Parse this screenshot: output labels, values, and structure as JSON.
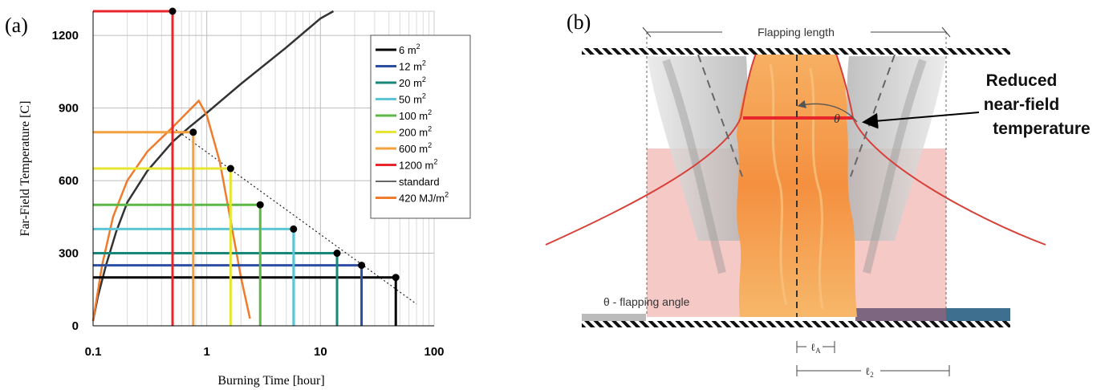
{
  "panel_a": {
    "label": "(a)",
    "chart_data": {
      "type": "line",
      "xlabel": "Burning Time [hour]",
      "ylabel": "Far-Field Temperature [C]",
      "xscale": "log",
      "xlim": [
        0.1,
        100
      ],
      "ylim": [
        0,
        1300
      ],
      "x_ticks": [
        "0.1",
        "1",
        "10",
        "100"
      ],
      "y_ticks": [
        "0",
        "300",
        "600",
        "900",
        "1200"
      ],
      "grid": true,
      "legend_position": "top-right",
      "series": [
        {
          "name": "6 m",
          "sup": "2",
          "color": "#000000",
          "level": 200,
          "end_time": 46
        },
        {
          "name": "12 m",
          "sup": "2",
          "color": "#2b4ea2",
          "level": 250,
          "end_time": 23
        },
        {
          "name": "20 m",
          "sup": "2",
          "color": "#17877a",
          "level": 300,
          "end_time": 14
        },
        {
          "name": "50  m",
          "sup": "2",
          "color": "#5cc6d6",
          "level": 400,
          "end_time": 5.8
        },
        {
          "name": "100 m",
          "sup": "2",
          "color": "#5db848",
          "level": 500,
          "end_time": 2.95
        },
        {
          "name": "200  m",
          "sup": "2",
          "color": "#e6e632",
          "level": 650,
          "end_time": 1.62
        },
        {
          "name": "600  m",
          "sup": "2",
          "color": "#f3a03e",
          "level": 800,
          "end_time": 0.76
        },
        {
          "name": "1200  m",
          "sup": "2",
          "color": "#e8262b",
          "level": 1300,
          "end_time": 0.5
        }
      ],
      "standard": {
        "name": "standard",
        "color": "#333333",
        "x": [
          0.1,
          0.11,
          0.13,
          0.16,
          0.2,
          0.3,
          0.5,
          0.7,
          1,
          2,
          5,
          10,
          13
        ],
        "y": [
          20,
          120,
          250,
          390,
          510,
          640,
          760,
          820,
          880,
          1000,
          1150,
          1270,
          1300
        ]
      },
      "energy_curve": {
        "name": "420 MJ/m",
        "sup": "2",
        "color": "#f07b2c",
        "x": [
          0.1,
          0.12,
          0.15,
          0.2,
          0.3,
          0.5,
          0.7,
          0.85,
          1.0,
          1.3,
          1.6,
          2.0,
          2.4
        ],
        "y": [
          20,
          250,
          450,
          600,
          720,
          820,
          890,
          930,
          870,
          680,
          450,
          200,
          30
        ]
      },
      "decay_line": {
        "style": "dotted",
        "x": [
          0.5,
          70
        ],
        "y": [
          820,
          90
        ]
      }
    }
  },
  "panel_b": {
    "label": "(b)",
    "flapping_length_label": "Flapping length",
    "reduced_line1": "Reduced",
    "reduced_line2": "near-field",
    "reduced_line3": "temperature",
    "theta_symbol": "θ",
    "theta_caption": "θ - flapping angle",
    "dim_small": "ℓ",
    "dim_small_sub": "A",
    "dim_large": "ℓ",
    "dim_large_sub": "2",
    "colors": {
      "flame": "#f7a35c",
      "flame_core": "#f28a3a",
      "red_curve": "#d8403a",
      "pink_fill": "#f4c3c0",
      "smoke": "#bcbcbc",
      "floor_dark": "#3e6f8e",
      "floor_mid": "#7d6680"
    }
  }
}
